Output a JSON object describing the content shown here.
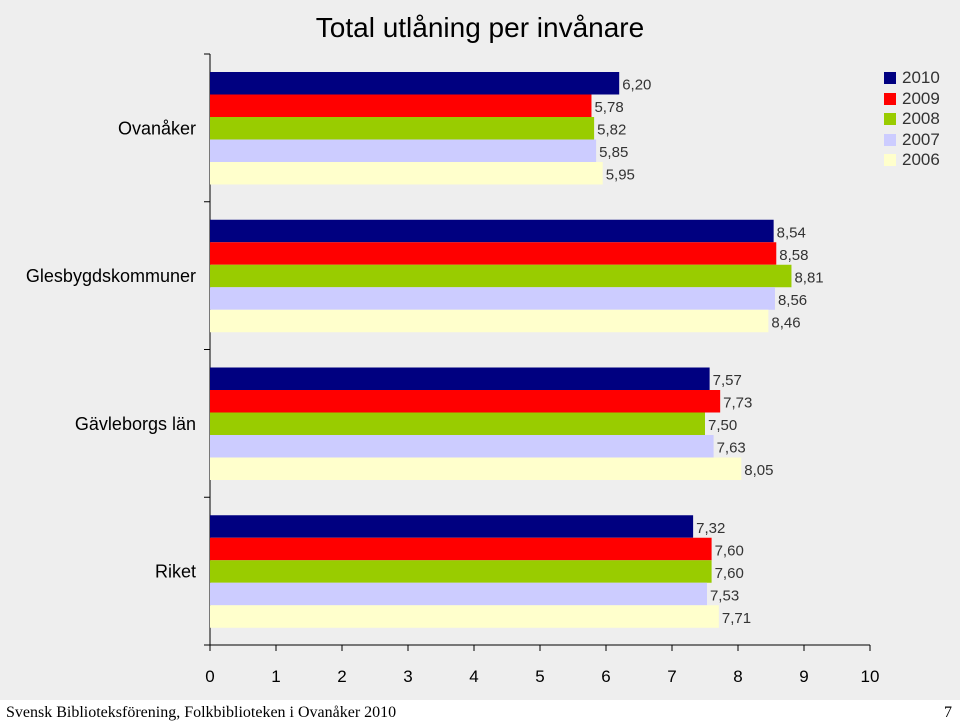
{
  "footer": {
    "text": "Svensk Biblioteksförening, Folkbiblioteken i Ovanåker 2010",
    "page_number": "7"
  },
  "chart_data": {
    "type": "bar",
    "orientation": "horizontal",
    "title": "Total utlåning per invånare",
    "categories": [
      "Ovanåker",
      "Glesbygdskommuner",
      "Gävleborgs län",
      "Riket"
    ],
    "series": [
      {
        "name": "2010",
        "color": "#000080",
        "values": [
          6.2,
          8.54,
          7.57,
          7.32
        ],
        "labels": [
          "6,20",
          "8,54",
          "7,57",
          "7,32"
        ]
      },
      {
        "name": "2009",
        "color": "#ff0000",
        "values": [
          5.78,
          8.58,
          7.73,
          7.6
        ],
        "labels": [
          "5,78",
          "8,58",
          "7,73",
          "7,60"
        ]
      },
      {
        "name": "2008",
        "color": "#99cc00",
        "values": [
          5.82,
          8.81,
          7.5,
          7.6
        ],
        "labels": [
          "5,82",
          "8,81",
          "7,50",
          "7,60"
        ]
      },
      {
        "name": "2007",
        "color": "#ccccff",
        "values": [
          5.85,
          8.56,
          7.63,
          7.53
        ],
        "labels": [
          "5,85",
          "8,56",
          "7,63",
          "7,53"
        ]
      },
      {
        "name": "2006",
        "color": "#ffffcc",
        "values": [
          5.95,
          8.46,
          8.05,
          7.71
        ],
        "labels": [
          "5,95",
          "8,46",
          "8,05",
          "7,71"
        ]
      }
    ],
    "xlim": [
      0,
      10
    ],
    "xticks": [
      "0",
      "1",
      "2",
      "3",
      "4",
      "5",
      "6",
      "7",
      "8",
      "9",
      "10"
    ],
    "legend_position": "top-right",
    "grid": false
  }
}
